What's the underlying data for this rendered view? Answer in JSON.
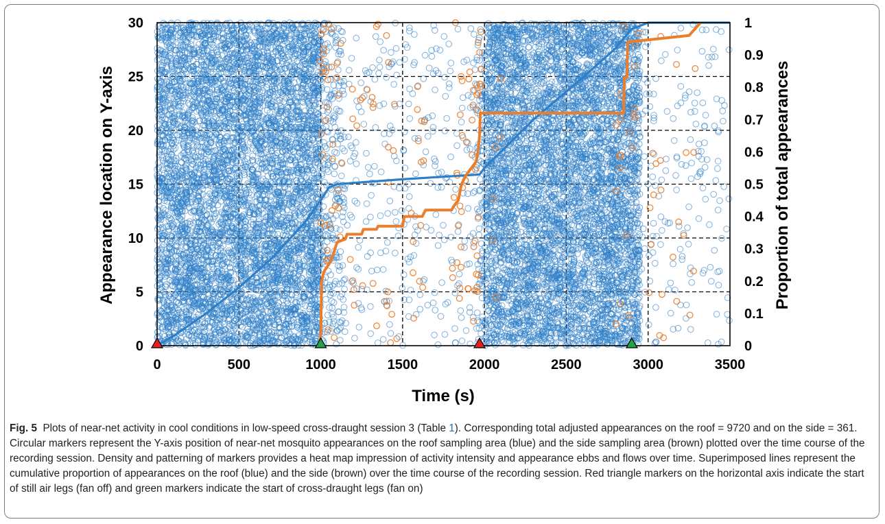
{
  "colors": {
    "roof": "#2f7fc8",
    "side": "#ea7e2d",
    "still_air_marker": "#e62020",
    "draught_marker": "#21a34a"
  },
  "chart_data": {
    "type": "scatter",
    "title": "",
    "xlabel": "Time (s)",
    "ylabel": "Appearance location on Y-axis",
    "y2label": "Proportion of total appearances",
    "xlim": [
      0,
      3500
    ],
    "ylim": [
      0,
      30
    ],
    "y2lim": [
      0,
      1
    ],
    "x_ticks": [
      "0",
      "500",
      "1000",
      "1500",
      "2000",
      "2500",
      "3000",
      "3500"
    ],
    "y_ticks": [
      "0",
      "5",
      "10",
      "15",
      "20",
      "25",
      "30"
    ],
    "y2_ticks": [
      "0",
      "0.1",
      "0.2",
      "0.3",
      "0.4",
      "0.5",
      "0.6",
      "0.7",
      "0.8",
      "0.9",
      "1"
    ],
    "grid": "dashed",
    "series": [
      {
        "kind": "scatter",
        "point_density_profile": [
          [
            0,
            1000,
            100
          ],
          [
            1000,
            1150,
            30
          ],
          [
            1150,
            1950,
            6
          ],
          [
            1950,
            2000,
            30
          ],
          [
            2000,
            2950,
            100
          ],
          [
            2950,
            3500,
            5
          ]
        ]
      },
      {
        "kind": "scatter",
        "point_clusters": [
          [
            990,
            1050,
            20
          ],
          [
            1050,
            1150,
            16
          ],
          [
            1180,
            1260,
            10
          ],
          [
            1280,
            1350,
            8
          ],
          [
            1400,
            1480,
            12
          ],
          [
            1550,
            1650,
            14
          ],
          [
            1800,
            1850,
            10
          ],
          [
            1850,
            1980,
            40
          ],
          [
            2050,
            2100,
            6
          ],
          [
            2800,
            2950,
            20
          ],
          [
            3000,
            3100,
            12
          ],
          [
            3150,
            3300,
            10
          ]
        ]
      },
      {
        "kind": "line",
        "x": [
          0,
          100,
          300,
          500,
          700,
          900,
          1000,
          1050,
          1100,
          1500,
          1970,
          2000,
          2300,
          2600,
          2800,
          2900,
          3000,
          3500
        ],
        "y2": [
          0,
          0.03,
          0.1,
          0.18,
          0.27,
          0.38,
          0.45,
          0.49,
          0.5,
          0.515,
          0.53,
          0.55,
          0.7,
          0.83,
          0.92,
          0.98,
          1.0,
          1.0
        ]
      },
      {
        "kind": "line",
        "x": [
          990,
          1000,
          1005,
          1020,
          1060,
          1080,
          1100,
          1150,
          1160,
          1250,
          1260,
          1340,
          1350,
          1500,
          1510,
          1620,
          1640,
          1800,
          1810,
          1840,
          1860,
          1890,
          1920,
          1950,
          1960,
          1970,
          1975,
          2850,
          2855,
          2870,
          2875,
          3250,
          3320
        ],
        "y2": [
          0.0,
          0.03,
          0.2,
          0.23,
          0.26,
          0.29,
          0.32,
          0.33,
          0.345,
          0.345,
          0.36,
          0.36,
          0.37,
          0.37,
          0.4,
          0.4,
          0.42,
          0.42,
          0.43,
          0.45,
          0.5,
          0.53,
          0.55,
          0.57,
          0.6,
          0.65,
          0.72,
          0.72,
          0.83,
          0.83,
          0.94,
          0.96,
          1.0
        ]
      }
    ],
    "axis_markers": [
      {
        "x": 0,
        "kind": "red-triangle"
      },
      {
        "x": 1000,
        "kind": "green-triangle"
      },
      {
        "x": 1970,
        "kind": "red-triangle"
      },
      {
        "x": 2900,
        "kind": "green-triangle"
      }
    ]
  },
  "caption": {
    "label": "Fig. 5",
    "text_before_ref": "  Plots of near-net activity in cool conditions in low-speed cross-draught session 3 (Table ",
    "table_ref": "1",
    "text_after_ref": "). Corresponding total adjusted appearances on the roof = 9720 and on the side = 361. Circular markers represent the Y-axis position of near-net mosquito appearances on the roof sampling area (blue) and the side sampling area (brown) plotted over the time course of the recording session. Density and patterning of markers provides a heat map impression of activity intensity and appearance ebbs and flows over time. Superimposed lines represent the cumulative proportion of appearances on the roof (blue) and the side (brown) over the time course of the recording session. Red triangle markers on the horizontal axis indicate the start of still air legs (fan off) and green markers indicate the start of cross-draught legs (fan on)"
  }
}
